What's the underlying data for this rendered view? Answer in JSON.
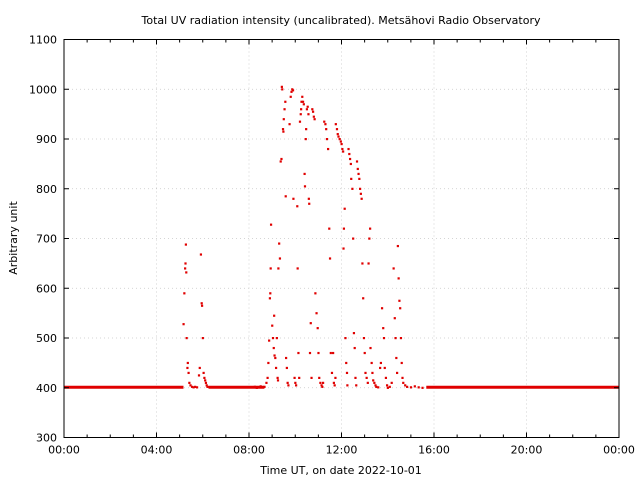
{
  "chart_data": {
    "type": "scatter",
    "title": "Total UV radiation intensity (uncalibrated). Metsähovi Radio Observatory",
    "xlabel": "Time UT, on date 2022-10-01",
    "ylabel": "Arbitrary unit",
    "xlim": [
      "2022-10-01T00:00",
      "2022-10-02T00:00"
    ],
    "ylim": [
      300,
      1100
    ],
    "x_ticks": [
      "00:00",
      "04:00",
      "08:00",
      "12:00",
      "16:00",
      "20:00",
      "00:00"
    ],
    "y_ticks": [
      300,
      400,
      500,
      600,
      700,
      800,
      900,
      1000,
      1100
    ],
    "grid": true,
    "series_color": "#e00000",
    "baseline": {
      "value": 401,
      "ranges": [
        [
          "00:00",
          "05:10"
        ],
        [
          "06:15",
          "08:40"
        ],
        [
          "15:40",
          "24:00"
        ]
      ]
    },
    "points": [
      [
        "05:10",
        528
      ],
      [
        "05:12",
        590
      ],
      [
        "05:14",
        640
      ],
      [
        "05:15",
        650
      ],
      [
        "05:16",
        688
      ],
      [
        "05:17",
        632
      ],
      [
        "05:18",
        500
      ],
      [
        "05:20",
        440
      ],
      [
        "05:21",
        450
      ],
      [
        "05:23",
        430
      ],
      [
        "05:25",
        410
      ],
      [
        "05:28",
        405
      ],
      [
        "05:32",
        402
      ],
      [
        "05:36",
        401
      ],
      [
        "05:40",
        402
      ],
      [
        "05:45",
        401
      ],
      [
        "05:50",
        425
      ],
      [
        "05:52",
        440
      ],
      [
        "05:55",
        668
      ],
      [
        "05:57",
        570
      ],
      [
        "05:58",
        565
      ],
      [
        "06:00",
        500
      ],
      [
        "06:02",
        430
      ],
      [
        "06:04",
        420
      ],
      [
        "06:06",
        415
      ],
      [
        "06:08",
        410
      ],
      [
        "06:10",
        405
      ],
      [
        "06:12",
        402
      ],
      [
        "08:10",
        401
      ],
      [
        "08:15",
        402
      ],
      [
        "08:20",
        400
      ],
      [
        "08:30",
        403
      ],
      [
        "08:40",
        402
      ],
      [
        "08:45",
        410
      ],
      [
        "08:48",
        420
      ],
      [
        "08:50",
        450
      ],
      [
        "08:52",
        495
      ],
      [
        "08:54",
        580
      ],
      [
        "08:55",
        590
      ],
      [
        "08:56",
        640
      ],
      [
        "08:57",
        728
      ],
      [
        "09:00",
        525
      ],
      [
        "09:02",
        500
      ],
      [
        "09:04",
        480
      ],
      [
        "09:05",
        545
      ],
      [
        "09:06",
        465
      ],
      [
        "09:08",
        460
      ],
      [
        "09:10",
        440
      ],
      [
        "09:12",
        500
      ],
      [
        "09:14",
        420
      ],
      [
        "09:15",
        415
      ],
      [
        "09:16",
        640
      ],
      [
        "09:18",
        690
      ],
      [
        "09:20",
        660
      ],
      [
        "09:22",
        855
      ],
      [
        "09:24",
        860
      ],
      [
        "09:25",
        1005
      ],
      [
        "09:26",
        1000
      ],
      [
        "09:28",
        920
      ],
      [
        "09:29",
        915
      ],
      [
        "09:30",
        940
      ],
      [
        "09:32",
        960
      ],
      [
        "09:34",
        975
      ],
      [
        "09:35",
        785
      ],
      [
        "09:36",
        460
      ],
      [
        "09:38",
        440
      ],
      [
        "09:40",
        410
      ],
      [
        "09:42",
        405
      ],
      [
        "09:45",
        930
      ],
      [
        "09:48",
        985
      ],
      [
        "09:50",
        995
      ],
      [
        "09:52",
        1000
      ],
      [
        "09:54",
        998
      ],
      [
        "09:55",
        780
      ],
      [
        "09:58",
        420
      ],
      [
        "10:00",
        410
      ],
      [
        "10:02",
        405
      ],
      [
        "10:05",
        765
      ],
      [
        "10:06",
        640
      ],
      [
        "10:08",
        470
      ],
      [
        "10:10",
        420
      ],
      [
        "10:12",
        935
      ],
      [
        "10:14",
        950
      ],
      [
        "10:15",
        960
      ],
      [
        "10:16",
        975
      ],
      [
        "10:18",
        985
      ],
      [
        "10:20",
        975
      ],
      [
        "10:22",
        970
      ],
      [
        "10:24",
        830
      ],
      [
        "10:25",
        805
      ],
      [
        "10:27",
        900
      ],
      [
        "10:28",
        920
      ],
      [
        "10:30",
        960
      ],
      [
        "10:32",
        965
      ],
      [
        "10:34",
        950
      ],
      [
        "10:35",
        780
      ],
      [
        "10:36",
        770
      ],
      [
        "10:38",
        470
      ],
      [
        "10:40",
        530
      ],
      [
        "10:42",
        420
      ],
      [
        "10:44",
        960
      ],
      [
        "10:46",
        955
      ],
      [
        "10:48",
        945
      ],
      [
        "10:50",
        940
      ],
      [
        "10:52",
        590
      ],
      [
        "10:55",
        550
      ],
      [
        "10:58",
        520
      ],
      [
        "11:00",
        470
      ],
      [
        "11:02",
        420
      ],
      [
        "11:05",
        410
      ],
      [
        "11:08",
        405
      ],
      [
        "11:10",
        402
      ],
      [
        "11:12",
        410
      ],
      [
        "11:15",
        935
      ],
      [
        "11:18",
        930
      ],
      [
        "11:20",
        920
      ],
      [
        "11:22",
        900
      ],
      [
        "11:25",
        880
      ],
      [
        "11:28",
        720
      ],
      [
        "11:30",
        660
      ],
      [
        "11:32",
        470
      ],
      [
        "11:35",
        430
      ],
      [
        "11:38",
        470
      ],
      [
        "11:40",
        410
      ],
      [
        "11:42",
        405
      ],
      [
        "11:44",
        420
      ],
      [
        "11:45",
        930
      ],
      [
        "11:48",
        920
      ],
      [
        "11:50",
        910
      ],
      [
        "11:52",
        905
      ],
      [
        "11:55",
        900
      ],
      [
        "11:58",
        895
      ],
      [
        "12:00",
        890
      ],
      [
        "12:02",
        880
      ],
      [
        "12:04",
        875
      ],
      [
        "12:05",
        680
      ],
      [
        "12:06",
        720
      ],
      [
        "12:08",
        760
      ],
      [
        "12:10",
        500
      ],
      [
        "12:12",
        450
      ],
      [
        "12:14",
        430
      ],
      [
        "12:15",
        405
      ],
      [
        "12:18",
        880
      ],
      [
        "12:20",
        870
      ],
      [
        "12:22",
        860
      ],
      [
        "12:24",
        850
      ],
      [
        "12:25",
        820
      ],
      [
        "12:28",
        800
      ],
      [
        "12:30",
        700
      ],
      [
        "12:32",
        510
      ],
      [
        "12:34",
        480
      ],
      [
        "12:36",
        420
      ],
      [
        "12:38",
        405
      ],
      [
        "12:40",
        855
      ],
      [
        "12:42",
        840
      ],
      [
        "12:44",
        830
      ],
      [
        "12:46",
        820
      ],
      [
        "12:48",
        800
      ],
      [
        "12:50",
        790
      ],
      [
        "12:52",
        780
      ],
      [
        "12:54",
        650
      ],
      [
        "12:56",
        580
      ],
      [
        "12:58",
        500
      ],
      [
        "13:00",
        470
      ],
      [
        "13:02",
        430
      ],
      [
        "13:05",
        420
      ],
      [
        "13:08",
        410
      ],
      [
        "13:10",
        650
      ],
      [
        "13:12",
        700
      ],
      [
        "13:14",
        720
      ],
      [
        "13:15",
        480
      ],
      [
        "13:18",
        450
      ],
      [
        "13:20",
        430
      ],
      [
        "13:22",
        415
      ],
      [
        "13:25",
        410
      ],
      [
        "13:28",
        405
      ],
      [
        "13:30",
        402
      ],
      [
        "13:35",
        401
      ],
      [
        "13:40",
        440
      ],
      [
        "13:42",
        450
      ],
      [
        "13:45",
        560
      ],
      [
        "13:48",
        520
      ],
      [
        "13:50",
        500
      ],
      [
        "13:52",
        440
      ],
      [
        "13:55",
        420
      ],
      [
        "13:58",
        405
      ],
      [
        "14:00",
        400
      ],
      [
        "14:05",
        402
      ],
      [
        "14:10",
        410
      ],
      [
        "14:15",
        640
      ],
      [
        "14:18",
        540
      ],
      [
        "14:20",
        500
      ],
      [
        "14:22",
        460
      ],
      [
        "14:24",
        430
      ],
      [
        "14:26",
        685
      ],
      [
        "14:28",
        620
      ],
      [
        "14:30",
        575
      ],
      [
        "14:32",
        560
      ],
      [
        "14:34",
        500
      ],
      [
        "14:36",
        450
      ],
      [
        "14:38",
        420
      ],
      [
        "14:40",
        410
      ],
      [
        "14:45",
        405
      ],
      [
        "14:50",
        402
      ],
      [
        "15:00",
        401
      ],
      [
        "15:10",
        403
      ],
      [
        "15:20",
        401
      ],
      [
        "15:30",
        400
      ]
    ]
  }
}
